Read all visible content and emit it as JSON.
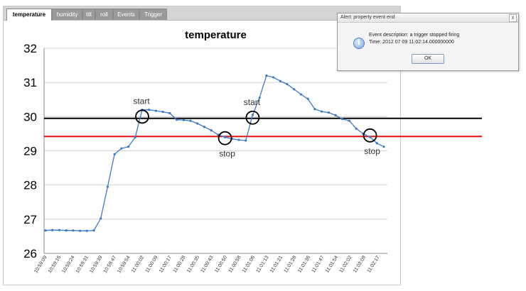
{
  "tabs": [
    {
      "label": "temperature",
      "active": true
    },
    {
      "label": "humidity",
      "active": false
    },
    {
      "label": "tilt",
      "active": false
    },
    {
      "label": "roll",
      "active": false
    },
    {
      "label": "Events",
      "active": false
    },
    {
      "label": "Trigger",
      "active": false
    }
  ],
  "chart_data": {
    "type": "line",
    "title": "temperature",
    "xlabel": "",
    "ylabel": "",
    "ylim": [
      26,
      32
    ],
    "yticks": [
      26,
      27,
      28,
      29,
      30,
      31,
      32
    ],
    "grid": true,
    "x_tick_labels": [
      "10:59:09",
      "10:59:16",
      "10:59:24",
      "10:59:31",
      "10:59:39",
      "10:59:47",
      "10:59:54",
      "11:00:02",
      "11:00:09",
      "11:00:17",
      "11:00:28",
      "11:00:35",
      "11:00:43",
      "11:00:50",
      "11:00:58",
      "11:01:06",
      "11:01:13",
      "11:01:21",
      "11:01:28",
      "11:01:36",
      "11:01:47",
      "11:01:54",
      "11:02:02",
      "11:02:09",
      "11:02:17"
    ],
    "series": [
      {
        "color": "#3c78c8",
        "values": [
          26.67,
          26.68,
          26.68,
          26.67,
          26.67,
          26.66,
          26.66,
          26.67,
          27.02,
          27.95,
          28.9,
          29.07,
          29.12,
          29.4,
          30.2,
          30.2,
          30.17,
          30.14,
          30.1,
          29.91,
          29.9,
          29.88,
          29.8,
          29.7,
          29.6,
          29.47,
          29.4,
          29.35,
          29.32,
          29.3,
          30.05,
          30.55,
          31.2,
          31.15,
          31.04,
          30.95,
          30.8,
          30.65,
          30.52,
          30.22,
          30.15,
          30.12,
          30.04,
          29.93,
          29.88,
          29.65,
          29.5,
          29.4,
          29.22,
          29.12
        ]
      }
    ],
    "reference_lines": [
      {
        "value": 29.95,
        "color": "#000000"
      },
      {
        "value": 29.42,
        "color": "#e81010"
      }
    ],
    "annotations": [
      {
        "text": "start",
        "x_index": 14,
        "y": 30.0,
        "label_pos": "above"
      },
      {
        "text": "stop",
        "x_index": 26,
        "y": 29.37,
        "label_pos": "below"
      },
      {
        "text": "start",
        "x_index": 30,
        "y": 29.97,
        "label_pos": "above"
      },
      {
        "text": "stop",
        "x_index": 47,
        "y": 29.45,
        "label_pos": "below"
      }
    ]
  },
  "dialog": {
    "title": "Alert: property event end",
    "close": "x",
    "line1": "Event description: a trigger stopped firing",
    "line2": "Time: 2012 07 09 11:02:14.000000000",
    "ok": "OK",
    "icon": "info-icon"
  }
}
